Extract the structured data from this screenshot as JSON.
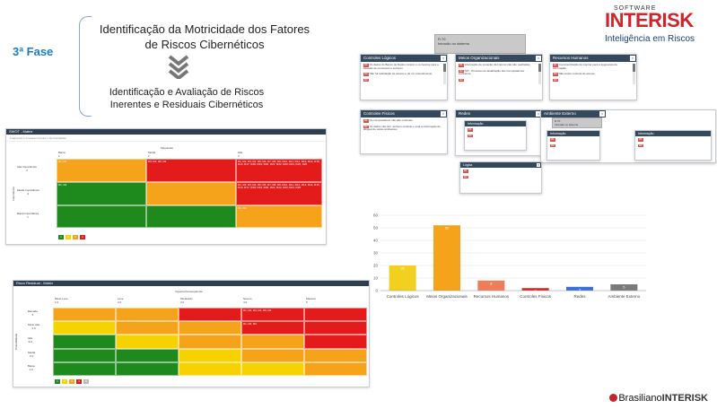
{
  "slide": {
    "phase_label": "3ª Fase",
    "title_line1": "Identificação da Motricidade dos Fatores",
    "title_line2": "de Riscos Cibernéticos",
    "subtitle_line1": "Identificação e Avaliação de Riscos",
    "subtitle_line2": "Inerentes e Residuais Cibernéticos",
    "logo_top": "SOFTWARE",
    "logo_main": "INTERISK",
    "logo_sub": "Inteligência em Riscos",
    "footer_brand_a": "Brasiliano",
    "footer_brand_b": "INTERISK"
  },
  "swot_panel": {
    "header": "SWOT - Matriz",
    "tabs": "Fraquezas e Ameaças    Forças e Oportunidades",
    "top_axis": "Magnitude",
    "col_labels": [
      "Baixa\n1",
      "Média\n2",
      "Alta\n3"
    ],
    "row_labels": [
      "Alta Importância\n3",
      "Média Importância\n2",
      "Baixa Importância\n1"
    ],
    "side_axis": "Importância",
    "cells": [
      [
        "R1, R2",
        "R3, R4, R5, R6",
        "R1, R2, R3, R4, R5, R6, R7, R8, R9, R10, R11, R12, R13, R14, R15, R16, R17, R18, R19, R20, R21, R22, R23, R24, R25, R26"
      ],
      [
        "R1, R2",
        "",
        "R1, R2, R3, R4, R5, R6, R7, R8, R9, R10, R11, R12, R13, R14, R15, R16, R17, R18, R19, R20, R21, R22, R23, R24, R25"
      ],
      [
        "",
        "",
        "R1, R2"
      ]
    ],
    "colors": [
      [
        "#f5a31a",
        "#e31b1b",
        "#e31b1b"
      ],
      [
        "#1e8a1e",
        "#f5a31a",
        "#e31b1b"
      ],
      [
        "#1e8a1e",
        "#1e8a1e",
        "#f5a31a"
      ]
    ],
    "legend": [
      {
        "label": "1",
        "color": "#1e8a1e"
      },
      {
        "label": "2",
        "color": "#f5d200"
      },
      {
        "label": "3",
        "color": "#f5a31a"
      },
      {
        "label": "4",
        "color": "#e31b1b"
      }
    ]
  },
  "residual_panel": {
    "header": "Risco Residual - Matriz",
    "top_axis": "Impacto/Consequência",
    "col_labels": [
      "Muito Leve\n1.0",
      "Leve\n2.0",
      "Moderado\n3.0",
      "Severo\n4.0",
      "Massivo\n5"
    ],
    "row_labels": [
      "Elevada\n5",
      "Muito Alta\n4.0",
      "Alta\n3.0",
      "Média\n2.0",
      "Baixa\n1.0"
    ],
    "side_axis": "Probabilidade",
    "cells": [
      [
        "",
        "",
        "",
        "R1, R2, R3, R4, R5, R6",
        ""
      ],
      [
        "",
        "",
        "",
        "R1, R2, R3",
        ""
      ],
      [
        "",
        "",
        "",
        "",
        ""
      ],
      [
        "",
        "",
        "",
        "",
        ""
      ],
      [
        "",
        "",
        "",
        "",
        ""
      ]
    ],
    "colors": [
      [
        "#f5a31a",
        "#f5a31a",
        "#e31b1b",
        "#e31b1b",
        "#e31b1b"
      ],
      [
        "#f5d200",
        "#f5a31a",
        "#f5a31a",
        "#e31b1b",
        "#e31b1b"
      ],
      [
        "#1e8a1e",
        "#f5d200",
        "#f5a31a",
        "#f5a31a",
        "#e31b1b"
      ],
      [
        "#1e8a1e",
        "#1e8a1e",
        "#f5d200",
        "#f5a31a",
        "#f5a31a"
      ],
      [
        "#1e8a1e",
        "#1e8a1e",
        "#f5d200",
        "#f5d200",
        "#f5a31a"
      ]
    ],
    "legend": [
      {
        "label": "1",
        "color": "#1e8a1e"
      },
      {
        "label": "2",
        "color": "#f5d200"
      },
      {
        "label": "3",
        "color": "#f5a31a"
      },
      {
        "label": "4",
        "color": "#e31b1b"
      },
      {
        "label": "5",
        "color": "#bbbbbb"
      }
    ]
  },
  "cards": {
    "tooltip_top": {
      "line1": "R.70",
      "line2": "Intrusão no sistema"
    },
    "controles_logicos": {
      "title": "Controles Lógicos",
      "items": [
        {
          "tag": "R1",
          "text": "Os dados do Banco de Dados contém o os bancos para a atuação de processos e serviços"
        },
        {
          "tag": "R2",
          "text": "Não há solicitação de acesso e de um entendimento"
        },
        {
          "tag": "R3",
          "text": ""
        }
      ]
    },
    "meios_organizacionais": {
      "title": "Meios Organizacionais",
      "items": [
        {
          "tag": "R1",
          "text": "Informação de proteção da Internet não são realizadas"
        },
        {
          "tag": "R2",
          "text": "N/P - Processo de atualização dos Computadores ineficiente"
        },
        {
          "tag": "R3",
          "text": ""
        }
      ]
    },
    "recursos_humanos": {
      "title": "Recursos Humanos",
      "items": [
        {
          "tag": "R1",
          "text": "Conscientização de inspirar para a segurança da informação"
        },
        {
          "tag": "R2",
          "text": "Não existe controle de acesso"
        },
        {
          "tag": "R3",
          "text": ""
        }
      ]
    },
    "controles_fisicos": {
      "title": "Controles Físicos",
      "items": [
        {
          "tag": "R1",
          "text": "Os computadores não são controles"
        },
        {
          "tag": "R2",
          "text": "Os dados não têm nenhum controle e está a informação de aluguel de vários ambientes"
        }
      ]
    },
    "redes": {
      "title": "Redes",
      "sub_title": "Informação",
      "sub_items": [
        {
          "tag": "R1",
          "text": ""
        },
        {
          "tag": "R2",
          "text": ""
        }
      ]
    },
    "ambiente_externo": {
      "title": "Ambiente Externo",
      "tooltip_line1": "R.70",
      "tooltip_line2": "Intrusão no sistema",
      "sub_a_title": "Informação",
      "sub_b_title": "Informação",
      "sub_items": [
        {
          "tag": "R1",
          "text": ""
        },
        {
          "tag": "R2",
          "text": ""
        }
      ]
    },
    "logical": {
      "title": "Lógica",
      "items": [
        {
          "tag": "R1",
          "text": ""
        },
        {
          "tag": "R2",
          "text": ""
        }
      ]
    }
  },
  "chart_data": {
    "type": "bar",
    "categories": [
      "Controles Lógicos",
      "Meios Organizacionais",
      "Recursos Humanos",
      "Controles Físicos",
      "Redes",
      "Ambiente Externo"
    ],
    "values": [
      20,
      52,
      8,
      2,
      3,
      5
    ],
    "colors": [
      "#f2d01f",
      "#f5a31a",
      "#ef7d5a",
      "#e02525",
      "#3a6fd8",
      "#7a7a7a"
    ],
    "ylim": [
      0,
      60
    ],
    "yticks": [
      0,
      10,
      20,
      30,
      40,
      50,
      60
    ],
    "title": "",
    "xlabel": "",
    "ylabel": "",
    "grid": true
  }
}
